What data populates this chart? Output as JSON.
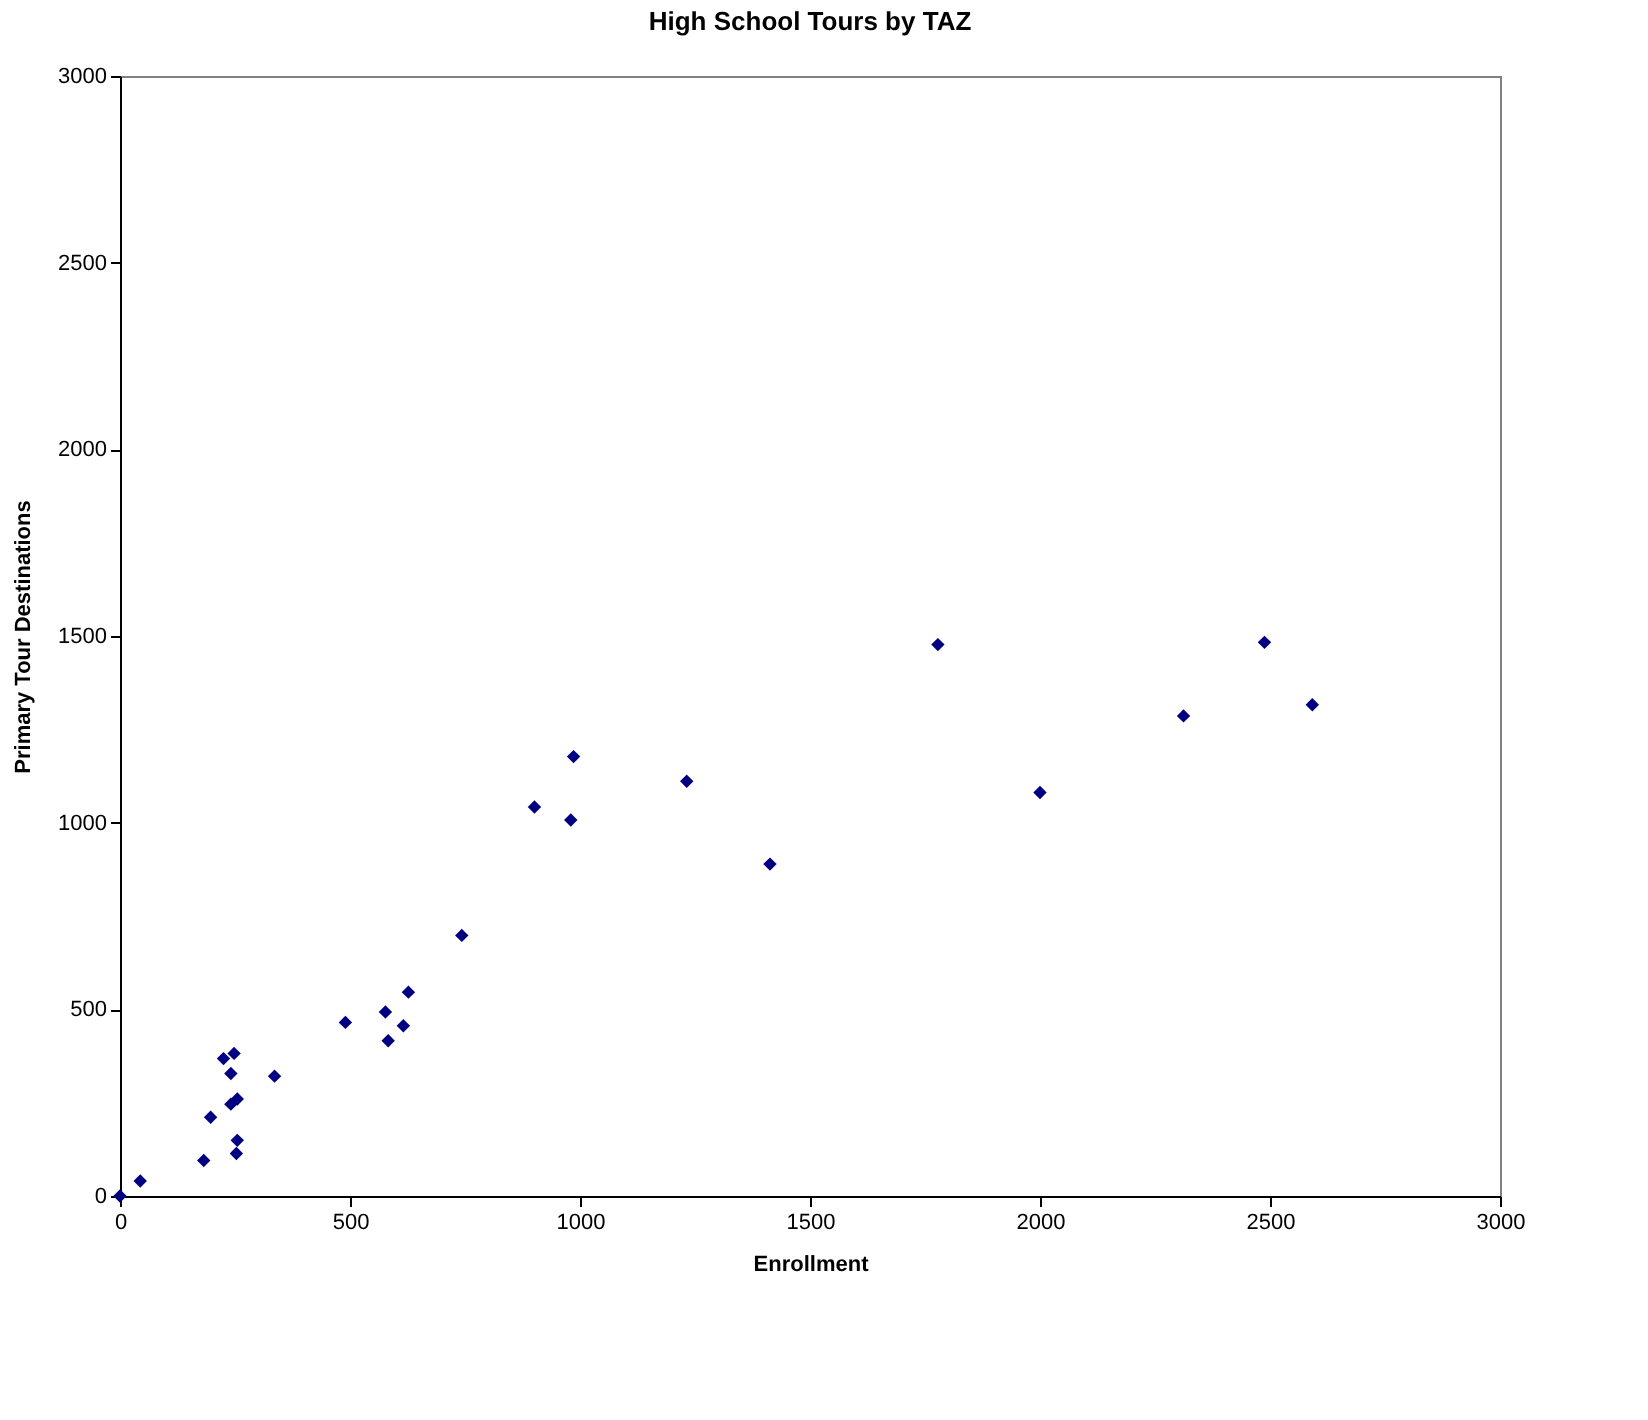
{
  "chart_data": {
    "type": "scatter",
    "title": "High School Tours by TAZ",
    "xlabel": "Enrollment",
    "ylabel": "Primary Tour Destinations",
    "x": [
      0,
      44,
      182,
      197,
      225,
      248,
      241,
      241,
      255,
      255,
      253,
      336,
      490,
      577,
      583,
      616,
      627,
      743,
      901,
      986,
      980,
      1232,
      1413,
      1778,
      2000,
      2312,
      2488,
      2592
    ],
    "series": [
      {
        "color": "#000080",
        "values": [
          0,
          40,
          95,
          211,
          368,
          382,
          328,
          246,
          260,
          149,
          114,
          321,
          465,
          493,
          416,
          456,
          546,
          698,
          1042,
          1177,
          1007,
          1111,
          889,
          1477,
          1081,
          1286,
          1483,
          1316
        ]
      }
    ],
    "xlim": [
      0,
      3000
    ],
    "xticks": [
      0,
      500,
      1000,
      1500,
      2000,
      2500,
      3000
    ],
    "ylim": [
      0,
      3000
    ],
    "yticks": [
      0,
      500,
      1000,
      1500,
      2000,
      2500,
      3000
    ],
    "marker": "diamond",
    "grid": false,
    "legend": false
  }
}
